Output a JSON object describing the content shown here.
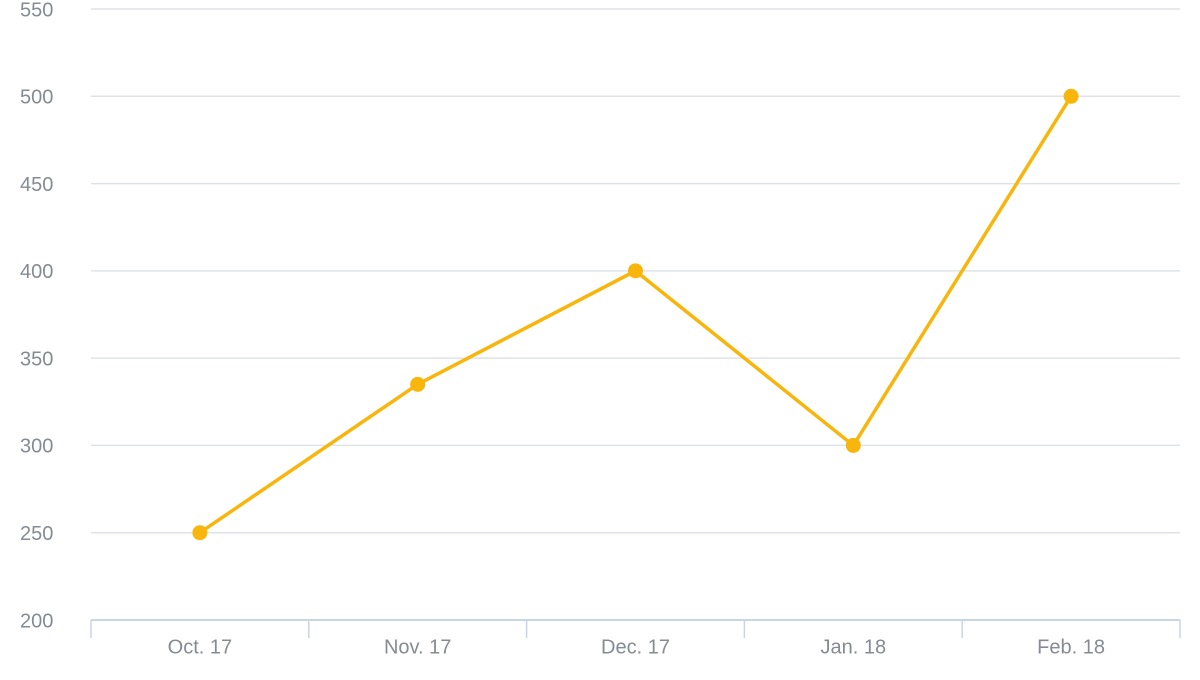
{
  "chart_data": {
    "type": "line",
    "categories": [
      "Oct. 17",
      "Nov. 17",
      "Dec. 17",
      "Jan. 18",
      "Feb. 18"
    ],
    "series": [
      {
        "color": "#f8b50c",
        "values": [
          250,
          335,
          400,
          300,
          500
        ]
      }
    ],
    "ylim": [
      200,
      550
    ],
    "yticks": [
      200,
      250,
      300,
      350,
      400,
      450,
      500,
      550
    ],
    "grid": true
  }
}
